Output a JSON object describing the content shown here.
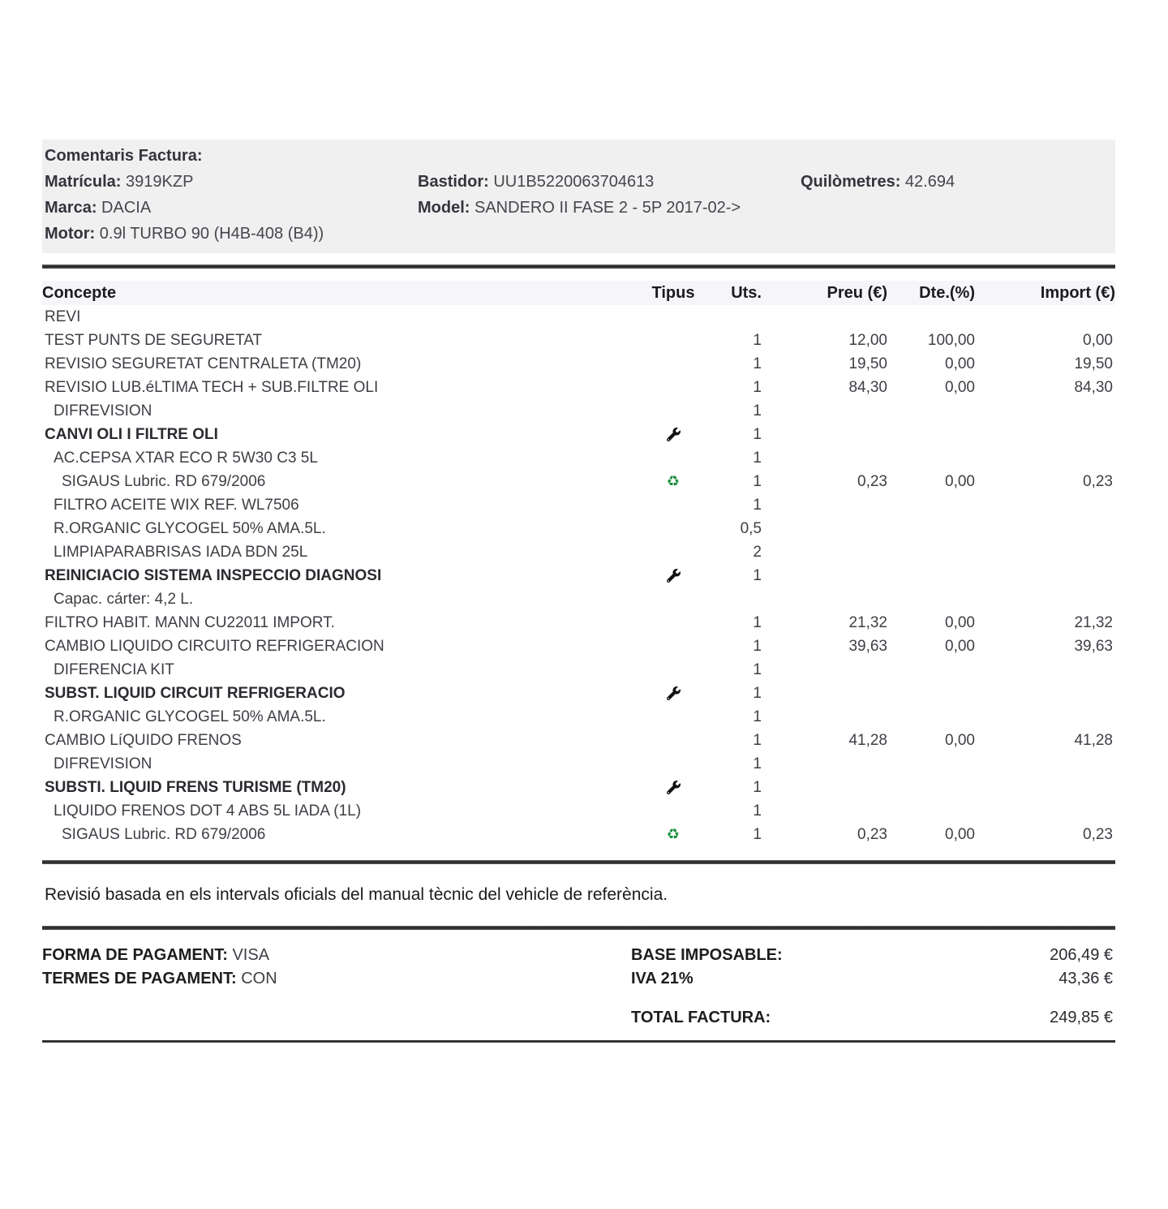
{
  "colors": {
    "comments_bg": "#f0f0f1",
    "table_header_bg": "#f5f5fa",
    "rule": "#2f2f2f",
    "recycle_green": "#1e8e3e",
    "text": "#3e3f45"
  },
  "comments": {
    "title": "Comentaris Factura:",
    "matricula_label": "Matrícula:",
    "matricula": "3919KZP",
    "bastidor_label": "Bastidor:",
    "bastidor": "UU1B5220063704613",
    "quilometres_label": "Quilòmetres:",
    "quilometres": "42.694",
    "marca_label": "Marca:",
    "marca": "DACIA",
    "model_label": "Model:",
    "model": "SANDERO II FASE 2 - 5P 2017-02->",
    "motor_label": "Motor:",
    "motor": "0.9l TURBO 90 (H4B-408 (B4))"
  },
  "table": {
    "recycle_glyph": "♻",
    "headers": {
      "concepte": "Concepte",
      "tipus": "Tipus",
      "uts": "Uts.",
      "preu": "Preu (€)",
      "dte": "Dte.(%)",
      "import": "Import (€)"
    },
    "rows": [
      {
        "concepte": "REVI",
        "indent": 0,
        "bold": false,
        "tipus": "",
        "uts": "",
        "preu": "",
        "dte": "",
        "import": ""
      },
      {
        "concepte": "TEST PUNTS DE SEGURETAT",
        "indent": 0,
        "bold": false,
        "tipus": "",
        "uts": "1",
        "preu": "12,00",
        "dte": "100,00",
        "import": "0,00"
      },
      {
        "concepte": "REVISIO SEGURETAT CENTRALETA (TM20)",
        "indent": 0,
        "bold": false,
        "tipus": "",
        "uts": "1",
        "preu": "19,50",
        "dte": "0,00",
        "import": "19,50"
      },
      {
        "concepte": "REVISIO LUB.éLTIMA TECH + SUB.FILTRE OLI",
        "indent": 0,
        "bold": false,
        "tipus": "",
        "uts": "1",
        "preu": "84,30",
        "dte": "0,00",
        "import": "84,30"
      },
      {
        "concepte": "DIFREVISION",
        "indent": 1,
        "bold": false,
        "tipus": "",
        "uts": "1",
        "preu": "",
        "dte": "",
        "import": ""
      },
      {
        "concepte": "CANVI OLI I FILTRE OLI",
        "indent": 0,
        "bold": true,
        "tipus": "wrench",
        "uts": "1",
        "preu": "",
        "dte": "",
        "import": ""
      },
      {
        "concepte": "AC.CEPSA XTAR ECO R 5W30 C3 5L",
        "indent": 1,
        "bold": false,
        "tipus": "",
        "uts": "1",
        "preu": "",
        "dte": "",
        "import": ""
      },
      {
        "concepte": "SIGAUS Lubric. RD 679/2006",
        "indent": 2,
        "bold": false,
        "tipus": "recycle",
        "uts": "1",
        "preu": "0,23",
        "dte": "0,00",
        "import": "0,23"
      },
      {
        "concepte": "FILTRO ACEITE WIX REF. WL7506",
        "indent": 1,
        "bold": false,
        "tipus": "",
        "uts": "1",
        "preu": "",
        "dte": "",
        "import": ""
      },
      {
        "concepte": "R.ORGANIC GLYCOGEL 50% AMA.5L.",
        "indent": 1,
        "bold": false,
        "tipus": "",
        "uts": "0,5",
        "preu": "",
        "dte": "",
        "import": ""
      },
      {
        "concepte": "LIMPIAPARABRISAS IADA BDN 25L",
        "indent": 1,
        "bold": false,
        "tipus": "",
        "uts": "2",
        "preu": "",
        "dte": "",
        "import": ""
      },
      {
        "concepte": "REINICIACIO SISTEMA INSPECCIO DIAGNOSI",
        "indent": 0,
        "bold": true,
        "tipus": "wrench",
        "uts": "1",
        "preu": "",
        "dte": "",
        "import": ""
      },
      {
        "concepte": "Capac. cárter: 4,2 L.",
        "indent": 1,
        "bold": false,
        "tipus": "",
        "uts": "",
        "preu": "",
        "dte": "",
        "import": ""
      },
      {
        "concepte": "FILTRO HABIT. MANN CU22011 IMPORT.",
        "indent": 0,
        "bold": false,
        "tipus": "",
        "uts": "1",
        "preu": "21,32",
        "dte": "0,00",
        "import": "21,32"
      },
      {
        "concepte": "CAMBIO LIQUIDO CIRCUITO REFRIGERACION",
        "indent": 0,
        "bold": false,
        "tipus": "",
        "uts": "1",
        "preu": "39,63",
        "dte": "0,00",
        "import": "39,63"
      },
      {
        "concepte": "DIFERENCIA KIT",
        "indent": 1,
        "bold": false,
        "tipus": "",
        "uts": "1",
        "preu": "",
        "dte": "",
        "import": ""
      },
      {
        "concepte": "SUBST. LIQUID CIRCUIT REFRIGERACIO",
        "indent": 0,
        "bold": true,
        "tipus": "wrench",
        "uts": "1",
        "preu": "",
        "dte": "",
        "import": ""
      },
      {
        "concepte": "R.ORGANIC GLYCOGEL 50% AMA.5L.",
        "indent": 1,
        "bold": false,
        "tipus": "",
        "uts": "1",
        "preu": "",
        "dte": "",
        "import": ""
      },
      {
        "concepte": "CAMBIO LíQUIDO FRENOS",
        "indent": 0,
        "bold": false,
        "tipus": "",
        "uts": "1",
        "preu": "41,28",
        "dte": "0,00",
        "import": "41,28"
      },
      {
        "concepte": "DIFREVISION",
        "indent": 1,
        "bold": false,
        "tipus": "",
        "uts": "1",
        "preu": "",
        "dte": "",
        "import": ""
      },
      {
        "concepte": "SUBSTI. LIQUID FRENS TURISME (TM20)",
        "indent": 0,
        "bold": true,
        "tipus": "wrench",
        "uts": "1",
        "preu": "",
        "dte": "",
        "import": ""
      },
      {
        "concepte": "LIQUIDO FRENOS DOT 4 ABS 5L IADA (1L)",
        "indent": 1,
        "bold": false,
        "tipus": "",
        "uts": "1",
        "preu": "",
        "dte": "",
        "import": ""
      },
      {
        "concepte": "SIGAUS Lubric. RD 679/2006",
        "indent": 2,
        "bold": false,
        "tipus": "recycle",
        "uts": "1",
        "preu": "0,23",
        "dte": "0,00",
        "import": "0,23"
      }
    ]
  },
  "note": "Revisió basada en els intervals oficials del manual tècnic del vehicle de referència.",
  "payment": {
    "forma_label": "FORMA DE PAGAMENT:",
    "forma_value": "VISA",
    "termes_label": "TERMES DE PAGAMENT:",
    "termes_value": "CON"
  },
  "totals": {
    "base_label": "BASE IMPOSABLE:",
    "base_value": "206,49 €",
    "iva_label": "IVA 21%",
    "iva_value": "43,36 €",
    "total_label": "TOTAL FACTURA:",
    "total_value": "249,85 €"
  }
}
